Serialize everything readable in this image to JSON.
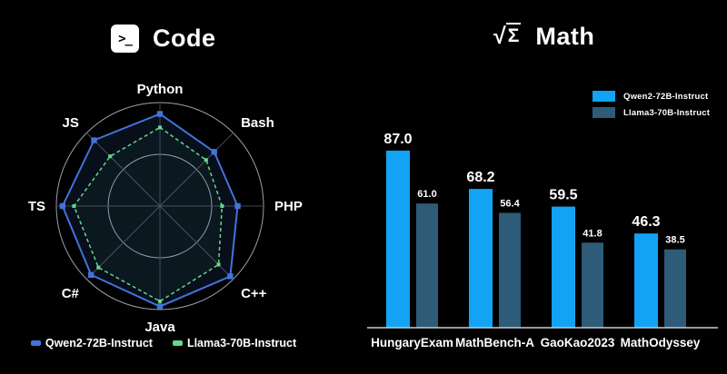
{
  "canvas": {
    "background": "#000000"
  },
  "panels": {
    "code": {
      "title": "Code",
      "icon": {
        "name": "terminal-icon",
        "glyph": ">_"
      }
    },
    "math": {
      "title": "Math",
      "icon": {
        "name": "sqrt-sigma-icon",
        "root": "√",
        "sigma": "Σ"
      }
    }
  },
  "chart_data": [
    {
      "type": "radar",
      "panel": "Code",
      "categories": [
        "Python",
        "Bash",
        "PHP",
        "C++",
        "Java",
        "C#",
        "TS",
        "JS"
      ],
      "category_order": "clockwise from top",
      "series": [
        {
          "name": "Qwen2-72B-Instruct",
          "color": "#4273D9",
          "line_style": "solid",
          "values": [
            0.89,
            0.74,
            0.75,
            0.96,
            0.97,
            0.94,
            0.94,
            0.9
          ]
        },
        {
          "name": "Llama3-70B-Instruct",
          "color": "#62D98C",
          "line_style": "dashed",
          "values": [
            0.76,
            0.63,
            0.6,
            0.8,
            0.92,
            0.84,
            0.83,
            0.68
          ]
        }
      ],
      "rings": [
        0.5,
        1.0
      ],
      "scale_note": "radial axis unlabeled; values estimated as fraction of outer ring",
      "ring_color": "#9AA0A8",
      "spoke_color": "#41454F",
      "legend_position": "bottom"
    },
    {
      "type": "bar",
      "panel": "Math",
      "categories": [
        "HungaryExam",
        "MathBench-A",
        "GaoKao2023",
        "MathOdyssey"
      ],
      "series": [
        {
          "name": "Qwen2-72B-Instruct",
          "color": "#12A3F4",
          "values": [
            87.0,
            68.2,
            59.5,
            46.3
          ],
          "labels": [
            "87.0",
            "68.2",
            "59.5",
            "46.3"
          ]
        },
        {
          "name": "Llama3-70B-Instruct",
          "color": "#2D5B78",
          "values": [
            61.0,
            56.4,
            41.8,
            38.5
          ],
          "labels": [
            "61.0",
            "56.4",
            "41.8",
            "38.5"
          ]
        }
      ],
      "ylim": [
        0,
        95
      ],
      "grid": false,
      "baseline_color": "#C9CDD4",
      "legend_position": "top-right"
    }
  ]
}
